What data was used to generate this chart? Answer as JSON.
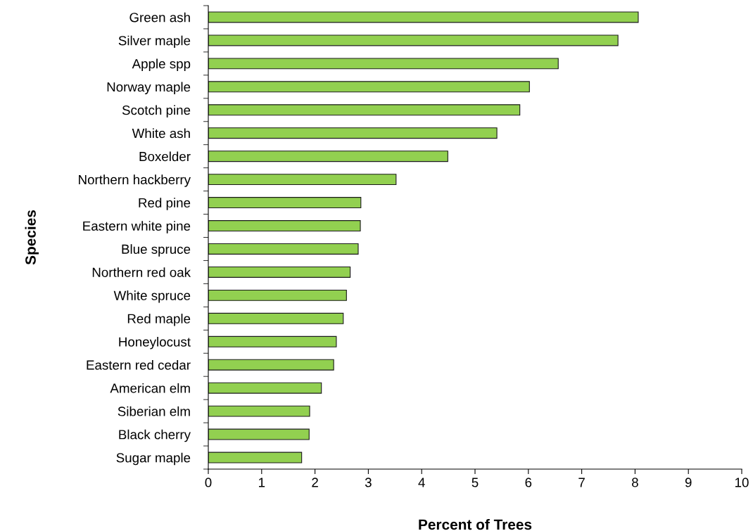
{
  "chart_data": {
    "type": "bar",
    "orientation": "horizontal",
    "xlabel": "Percent of Trees",
    "ylabel": "Species",
    "categories": [
      "Green ash",
      "Silver maple",
      "Apple spp",
      "Norway maple",
      "Scotch pine",
      "White ash",
      "Boxelder",
      "Northern hackberry",
      "Red pine",
      "Eastern white pine",
      "Blue spruce",
      "Northern red oak",
      "White spruce",
      "Red maple",
      "Honeylocust",
      "Eastern red cedar",
      "American elm",
      "Siberian elm",
      "Black cherry",
      "Sugar maple"
    ],
    "values": [
      8.06,
      7.68,
      6.56,
      6.02,
      5.84,
      5.41,
      4.49,
      3.52,
      2.86,
      2.85,
      2.81,
      2.66,
      2.59,
      2.53,
      2.4,
      2.35,
      2.12,
      1.9,
      1.89,
      1.75
    ],
    "color": "#92d050",
    "xlim": [
      0,
      10
    ],
    "xticks": [
      0,
      1,
      2,
      3,
      4,
      5,
      6,
      7,
      8,
      9,
      10
    ],
    "grid": false,
    "legend": false
  }
}
